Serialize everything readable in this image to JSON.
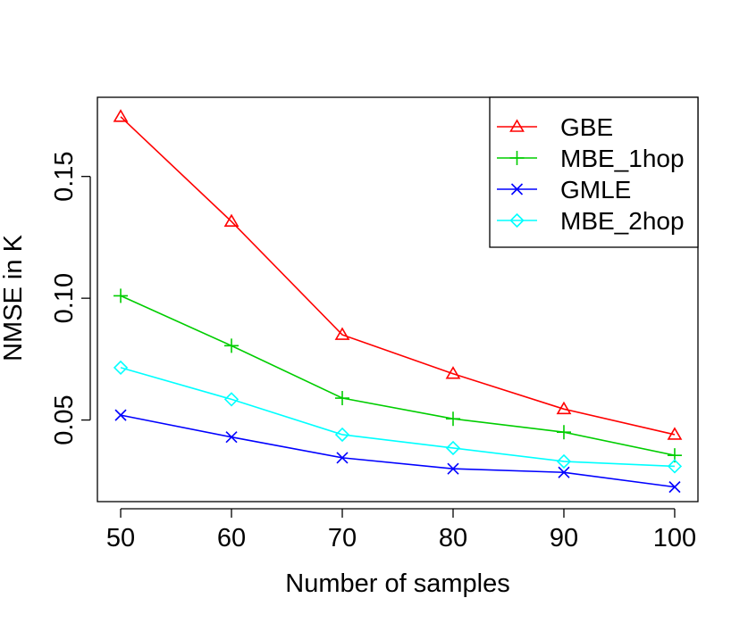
{
  "chart_data": {
    "type": "line",
    "title": "",
    "xlabel": "Number of samples",
    "ylabel": "NMSE in K",
    "x": [
      50,
      60,
      70,
      80,
      90,
      100
    ],
    "xticks": [
      "50",
      "60",
      "70",
      "80",
      "90",
      "100"
    ],
    "yticks": [
      "0.05",
      "0.10",
      "0.15"
    ],
    "ytick_values": [
      0.05,
      0.1,
      0.15
    ],
    "xlim": [
      47.9,
      102.1
    ],
    "ylim": [
      0.0165,
      0.1825
    ],
    "grid": false,
    "legend_position": "top-right",
    "series": [
      {
        "name": "GBE",
        "color": "#ff0000",
        "marker": "triangle",
        "values": [
          0.1745,
          0.1315,
          0.085,
          0.069,
          0.0545,
          0.044
        ]
      },
      {
        "name": "MBE_1hop",
        "color": "#00cd00",
        "marker": "plus",
        "values": [
          0.101,
          0.0805,
          0.059,
          0.0505,
          0.045,
          0.0355
        ]
      },
      {
        "name": "GMLE",
        "color": "#0000ff",
        "marker": "cross",
        "values": [
          0.052,
          0.043,
          0.0345,
          0.03,
          0.0285,
          0.0225
        ]
      },
      {
        "name": "MBE_2hop",
        "color": "#00ffff",
        "marker": "diamond",
        "values": [
          0.0715,
          0.0585,
          0.044,
          0.0385,
          0.033,
          0.031
        ]
      }
    ]
  }
}
